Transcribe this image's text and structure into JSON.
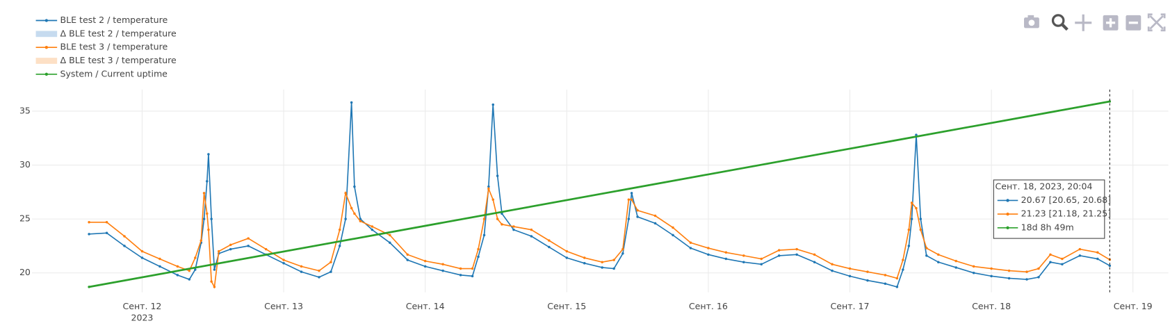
{
  "chart_data": {
    "type": "line",
    "x": [
      "2023-09-11 15:00",
      "2023-09-11 18:00",
      "2023-09-11 21:00",
      "2023-09-12 00:00",
      "2023-09-12 03:00",
      "2023-09-12 06:00",
      "2023-09-12 08:00",
      "2023-09-12 09:00",
      "2023-09-12 10:00",
      "2023-09-12 10:30",
      "2023-09-12 11:00",
      "2023-09-12 11:15",
      "2023-09-12 11:45",
      "2023-09-12 12:15",
      "2023-09-12 13:00",
      "2023-09-12 15:00",
      "2023-09-12 18:00",
      "2023-09-12 21:00",
      "2023-09-13 00:00",
      "2023-09-13 03:00",
      "2023-09-13 06:00",
      "2023-09-13 08:00",
      "2023-09-13 09:30",
      "2023-09-13 10:30",
      "2023-09-13 11:30",
      "2023-09-13 12:00",
      "2023-09-13 13:00",
      "2023-09-13 15:00",
      "2023-09-13 18:00",
      "2023-09-13 21:00",
      "2023-09-14 00:00",
      "2023-09-14 03:00",
      "2023-09-14 06:00",
      "2023-09-14 08:00",
      "2023-09-14 09:00",
      "2023-09-14 10:00",
      "2023-09-14 10:45",
      "2023-09-14 11:30",
      "2023-09-14 12:15",
      "2023-09-14 13:00",
      "2023-09-14 15:00",
      "2023-09-14 18:00",
      "2023-09-14 21:00",
      "2023-09-15 00:00",
      "2023-09-15 03:00",
      "2023-09-15 06:00",
      "2023-09-15 08:00",
      "2023-09-15 09:30",
      "2023-09-15 10:30",
      "2023-09-15 11:00",
      "2023-09-15 12:00",
      "2023-09-15 15:00",
      "2023-09-15 18:00",
      "2023-09-15 21:00",
      "2023-09-16 00:00",
      "2023-09-16 03:00",
      "2023-09-16 06:00",
      "2023-09-16 09:00",
      "2023-09-16 12:00",
      "2023-09-16 15:00",
      "2023-09-16 18:00",
      "2023-09-16 21:00",
      "2023-09-17 00:00",
      "2023-09-17 03:00",
      "2023-09-17 06:00",
      "2023-09-17 08:00",
      "2023-09-17 09:00",
      "2023-09-17 10:00",
      "2023-09-17 10:30",
      "2023-09-17 11:15",
      "2023-09-17 12:00",
      "2023-09-17 13:00",
      "2023-09-17 15:00",
      "2023-09-17 18:00",
      "2023-09-17 21:00",
      "2023-09-18 00:00",
      "2023-09-18 03:00",
      "2023-09-18 06:00",
      "2023-09-18 08:00",
      "2023-09-18 10:00",
      "2023-09-18 12:00",
      "2023-09-18 15:00",
      "2023-09-18 18:00",
      "2023-09-18 20:04"
    ],
    "series": [
      {
        "name": "BLE test 2 / temperature",
        "color": "#1f77b4",
        "values": [
          23.6,
          23.7,
          22.5,
          21.4,
          20.6,
          19.8,
          19.4,
          20.3,
          22.8,
          25,
          28.5,
          31,
          25,
          20.3,
          21.8,
          22.2,
          22.5,
          21.7,
          20.9,
          20.1,
          19.6,
          20.1,
          22.5,
          25,
          35.8,
          28,
          25,
          24,
          22.8,
          21.2,
          20.6,
          20.2,
          19.8,
          19.7,
          21.5,
          23.5,
          28,
          35.6,
          29,
          25.5,
          24,
          23.4,
          22.4,
          21.4,
          20.9,
          20.5,
          20.4,
          21.8,
          25,
          27.4,
          25.2,
          24.6,
          23.5,
          22.3,
          21.7,
          21.3,
          21.0,
          20.8,
          21.6,
          21.7,
          21.0,
          20.2,
          19.7,
          19.3,
          19.0,
          18.7,
          20.3,
          22.5,
          25,
          32.8,
          25,
          21.6,
          21.0,
          20.5,
          20.0,
          19.7,
          19.5,
          19.4,
          19.6,
          21.0,
          20.8,
          21.6,
          21.3,
          20.67
        ]
      },
      {
        "name": "Δ BLE test 2 / temperature",
        "color": "#c6dbef"
      },
      {
        "name": "BLE test 3 / temperature",
        "color": "#ff7f0e",
        "values": [
          24.7,
          24.7,
          23.4,
          22.0,
          21.3,
          20.6,
          20.2,
          21.4,
          23.0,
          27.4,
          25.5,
          24,
          19.2,
          18.7,
          22,
          22.6,
          23.2,
          22.2,
          21.2,
          20.6,
          20.2,
          21.0,
          24,
          27.4,
          26,
          25.5,
          24.8,
          24.3,
          23.5,
          21.7,
          21.1,
          20.8,
          20.4,
          20.4,
          22.2,
          25,
          27.8,
          26.8,
          25,
          24.5,
          24.3,
          24,
          23,
          22,
          21.4,
          21.0,
          21.2,
          22.2,
          26.8,
          26.8,
          25.8,
          25.3,
          24.2,
          22.8,
          22.3,
          21.9,
          21.6,
          21.3,
          22.1,
          22.2,
          21.7,
          20.8,
          20.4,
          20.1,
          19.8,
          19.5,
          21.2,
          24,
          26.5,
          26,
          24,
          22.3,
          21.7,
          21.1,
          20.6,
          20.4,
          20.2,
          20.1,
          20.4,
          21.7,
          21.3,
          22.2,
          21.9,
          21.23
        ]
      },
      {
        "name": "Δ BLE test 3 / temperature",
        "color": "#fde0c5"
      },
      {
        "name": "System / Current uptime",
        "color": "#2ca02c",
        "x": [
          "2023-09-11 15:00",
          "2023-09-18 20:04"
        ],
        "values": [
          18.7,
          35.9
        ]
      }
    ],
    "xlim": [
      "2023-09-11 05:20",
      "2023-09-19 06:00"
    ],
    "xticks": [
      {
        "value": "2023-09-12",
        "label": "Сент. 12"
      },
      {
        "value": "2023-09-13",
        "label": "Сент. 13"
      },
      {
        "value": "2023-09-14",
        "label": "Сент. 14"
      },
      {
        "value": "2023-09-15",
        "label": "Сент. 15"
      },
      {
        "value": "2023-09-16",
        "label": "Сент. 16"
      },
      {
        "value": "2023-09-17",
        "label": "Сент. 17"
      },
      {
        "value": "2023-09-18",
        "label": "Сент. 18"
      },
      {
        "value": "2023-09-19",
        "label": "Сент. 19"
      }
    ],
    "x_year": "2023",
    "ylim": [
      18.2,
      37.0
    ],
    "yticks": [
      20,
      25,
      30,
      35
    ],
    "grid": true,
    "legend": "top-left",
    "hover": {
      "x": "2023-09-18 20:04",
      "title": "Сент. 18, 2023, 20:04",
      "lines": [
        "20.67 [20.65, 20.68]",
        "21.23 [21.18, 21.25]",
        "18d 8h 49m"
      ]
    }
  }
}
